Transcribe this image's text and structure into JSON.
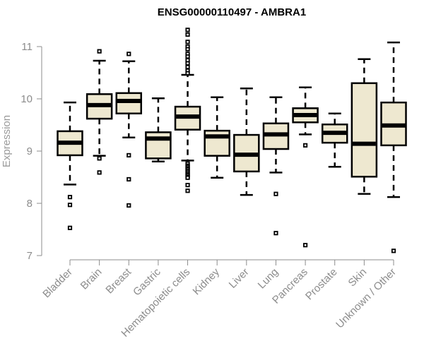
{
  "chart_data": {
    "type": "boxplot",
    "title": "ENSG00000110497 - AMBRA1",
    "xlabel": "",
    "ylabel": "Expression",
    "ylim": [
      7,
      11
    ],
    "yticks": [
      7,
      8,
      9,
      10,
      11
    ],
    "grid": false,
    "legend": "none",
    "colors": {
      "box_fill": "#eee8d0",
      "box_stroke": "#000000",
      "axis": "#8c8c8c"
    },
    "categories": [
      "Bladder",
      "Brain",
      "Breast",
      "Gastric",
      "Hematopoietic cells",
      "Kidney",
      "Liver",
      "Lung",
      "Pancreas",
      "Prostate",
      "Skin",
      "Unknown / Other"
    ],
    "boxes": [
      {
        "name": "Bladder",
        "whisker_low": 8.36,
        "q1": 8.92,
        "median": 9.16,
        "q3": 9.38,
        "whisker_high": 9.93,
        "outliers": [
          8.12,
          7.97,
          7.53
        ]
      },
      {
        "name": "Brain",
        "whisker_low": 8.91,
        "q1": 9.62,
        "median": 9.88,
        "q3": 10.09,
        "whisker_high": 10.73,
        "outliers": [
          10.91,
          8.86,
          8.59
        ]
      },
      {
        "name": "Breast",
        "whisker_low": 9.26,
        "q1": 9.72,
        "median": 9.96,
        "q3": 10.11,
        "whisker_high": 10.72,
        "outliers": [
          10.86,
          8.92,
          8.46,
          7.96
        ]
      },
      {
        "name": "Gastric",
        "whisker_low": 8.8,
        "q1": 8.86,
        "median": 9.24,
        "q3": 9.36,
        "whisker_high": 10.01,
        "outliers": []
      },
      {
        "name": "Hematopoietic cells",
        "whisker_low": 8.82,
        "q1": 9.41,
        "median": 9.66,
        "q3": 9.85,
        "whisker_high": 10.46,
        "outliers": [
          11.32,
          11.23,
          11.09,
          11.0,
          10.95,
          10.86,
          10.81,
          10.74,
          10.68,
          10.61,
          10.54,
          10.49,
          8.76,
          8.72,
          8.7,
          8.67,
          8.65,
          8.62,
          8.59,
          8.56,
          8.54,
          8.51,
          8.49,
          8.35,
          8.24
        ]
      },
      {
        "name": "Kidney",
        "whisker_low": 8.49,
        "q1": 8.91,
        "median": 9.28,
        "q3": 9.39,
        "whisker_high": 10.03,
        "outliers": []
      },
      {
        "name": "Liver",
        "whisker_low": 8.16,
        "q1": 8.61,
        "median": 8.93,
        "q3": 9.31,
        "whisker_high": 10.2,
        "outliers": []
      },
      {
        "name": "Lung",
        "whisker_low": 8.59,
        "q1": 9.04,
        "median": 9.32,
        "q3": 9.53,
        "whisker_high": 10.03,
        "outliers": [
          8.18,
          7.43
        ]
      },
      {
        "name": "Pancreas",
        "whisker_low": 9.32,
        "q1": 9.55,
        "median": 9.69,
        "q3": 9.82,
        "whisker_high": 10.22,
        "outliers": [
          9.11,
          7.2
        ]
      },
      {
        "name": "Prostate",
        "whisker_low": 8.7,
        "q1": 9.16,
        "median": 9.35,
        "q3": 9.51,
        "whisker_high": 9.72,
        "outliers": []
      },
      {
        "name": "Skin",
        "whisker_low": 8.18,
        "q1": 8.51,
        "median": 9.14,
        "q3": 10.3,
        "whisker_high": 10.76,
        "outliers": []
      },
      {
        "name": "Unknown / Other",
        "whisker_low": 8.12,
        "q1": 9.11,
        "median": 9.49,
        "q3": 9.93,
        "whisker_high": 11.08,
        "outliers": [
          7.09
        ]
      }
    ]
  }
}
